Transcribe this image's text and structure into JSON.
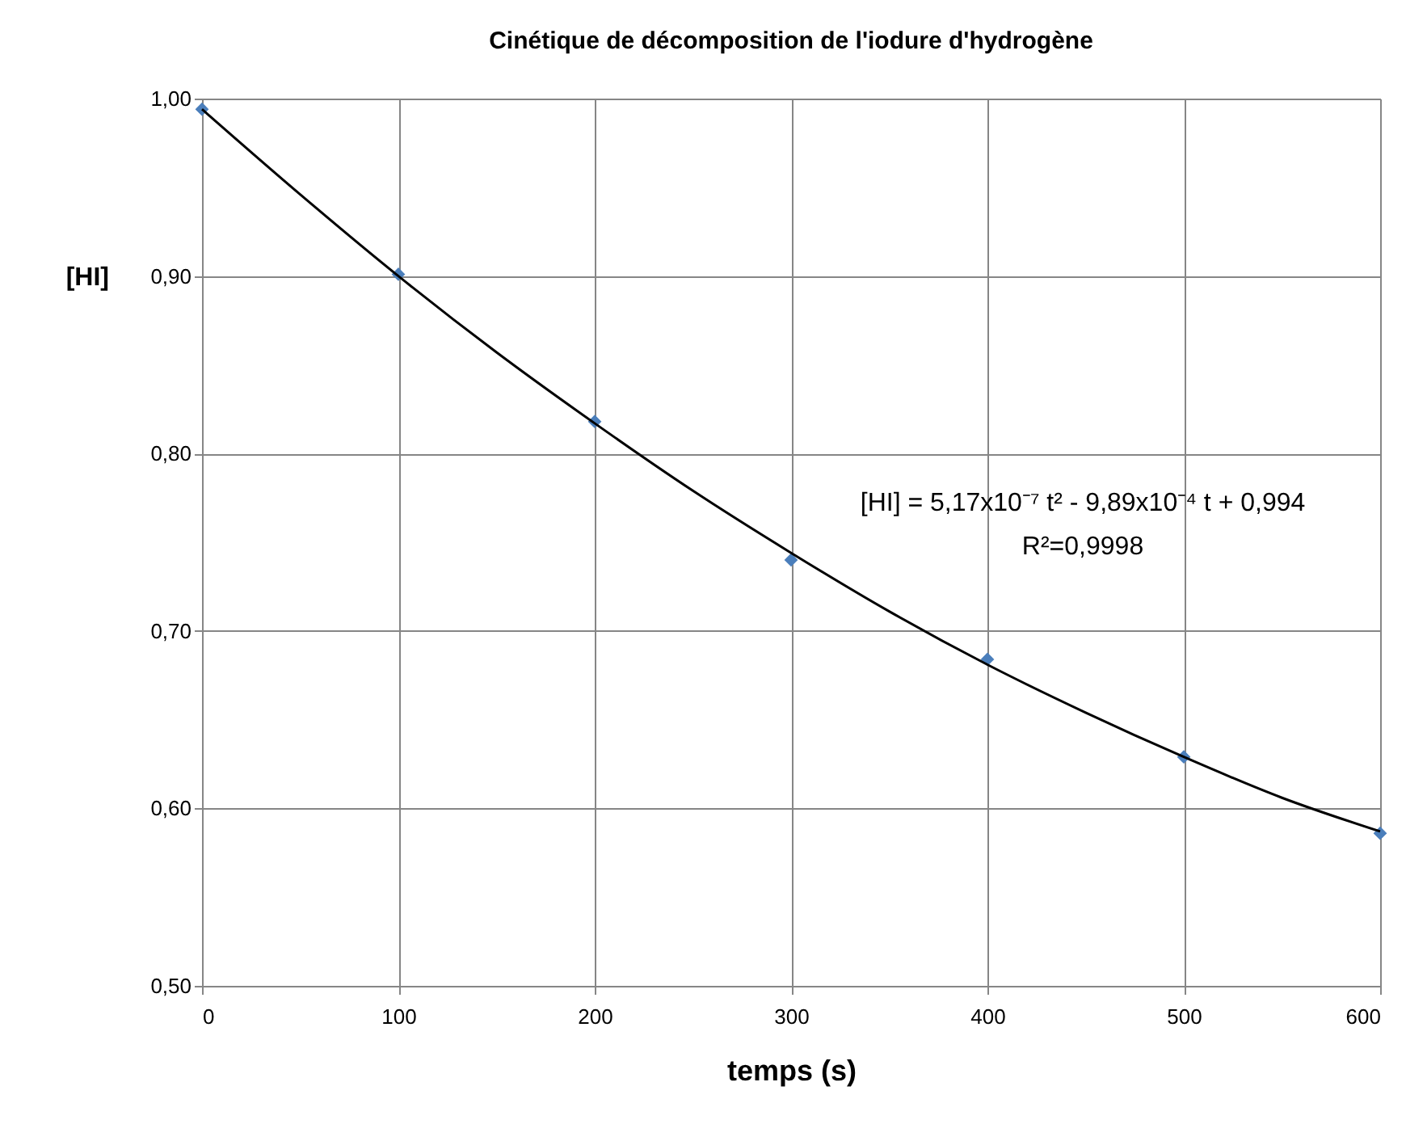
{
  "chart_data": {
    "type": "scatter",
    "title": "Cinétique de décomposition de l'iodure d'hydrogène",
    "xlabel": "temps (s)",
    "ylabel": "[HI]",
    "series": [
      {
        "color": "#4a7ebb",
        "marker": "diamond",
        "x": [
          0,
          100,
          200,
          300,
          400,
          500,
          600
        ],
        "values": [
          0.994,
          0.901,
          0.818,
          0.74,
          0.684,
          0.629,
          0.586
        ]
      },
      {
        "type": "line",
        "color": "#000000",
        "marker": "none",
        "x": [
          0,
          50,
          100,
          150,
          200,
          250,
          300,
          350,
          400,
          450,
          500,
          550,
          600
        ],
        "values": [
          0.994,
          0.946,
          0.9,
          0.857,
          0.817,
          0.779,
          0.744,
          0.711,
          0.681,
          0.654,
          0.629,
          0.606,
          0.587
        ]
      }
    ],
    "xlim": [
      0,
      600
    ],
    "xticks": [
      0,
      100,
      200,
      300,
      400,
      500,
      600
    ],
    "ylim": [
      0.5,
      1.0
    ],
    "yticks": [
      {
        "value": 0.5,
        "label": "0,50"
      },
      {
        "value": 0.6,
        "label": "0,60"
      },
      {
        "value": 0.7,
        "label": "0,70"
      },
      {
        "value": 0.8,
        "label": "0,80"
      },
      {
        "value": 0.9,
        "label": "0,90"
      },
      {
        "value": 1.0,
        "label": "1,00"
      }
    ],
    "grid": true,
    "annotations": [
      "[HI] = 5,17x10⁻⁷ t² - 9,89x10⁻⁴ t + 0,994",
      "R²=0,9998"
    ]
  }
}
